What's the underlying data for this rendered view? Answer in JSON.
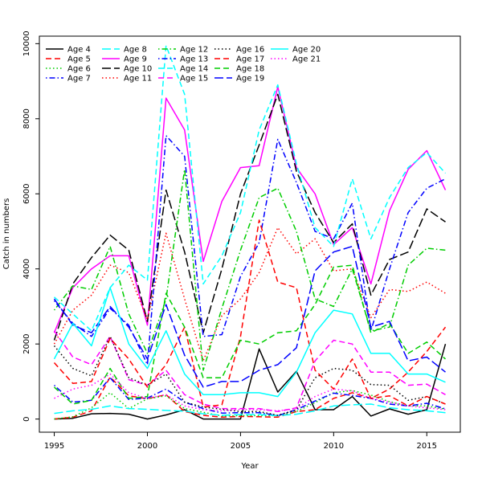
{
  "chart_data": {
    "type": "line",
    "xlabel": "Year",
    "ylabel": "Catch in numbers",
    "xlim": [
      1994.2,
      2016.8
    ],
    "ylim": [
      -350,
      10200
    ],
    "x_ticks": [
      1995,
      2000,
      2005,
      2010,
      2015
    ],
    "y_ticks": [
      0,
      2000,
      4000,
      6000,
      8000,
      10000
    ],
    "x": [
      1995,
      1996,
      1997,
      1998,
      1999,
      2000,
      2001,
      2002,
      2003,
      2004,
      2005,
      2006,
      2007,
      2008,
      2009,
      2010,
      2011,
      2012,
      2013,
      2014,
      2015,
      2016
    ],
    "legend_position": "top-left",
    "series": [
      {
        "name": "Age 4",
        "color": "#000000",
        "dash": "solid",
        "values": [
          0,
          20,
          140,
          150,
          130,
          0,
          110,
          250,
          0,
          0,
          0,
          1870,
          720,
          1270,
          250,
          250,
          600,
          80,
          270,
          130,
          250,
          2000
        ]
      },
      {
        "name": "Age 5",
        "color": "#ff0000",
        "dash": "dashed",
        "values": [
          0,
          50,
          220,
          1120,
          620,
          540,
          650,
          200,
          100,
          50,
          70,
          60,
          50,
          200,
          250,
          550,
          700,
          550,
          800,
          1250,
          1800,
          2450
        ]
      },
      {
        "name": "Age 6",
        "color": "#00cd00",
        "dash": "dotted",
        "values": [
          0,
          60,
          300,
          700,
          280,
          540,
          620,
          280,
          180,
          80,
          90,
          90,
          90,
          200,
          440,
          700,
          760,
          640,
          460,
          350,
          350,
          260
        ]
      },
      {
        "name": "Age 7",
        "color": "#0000ff",
        "dash": "dotdash",
        "values": [
          900,
          450,
          500,
          1100,
          520,
          560,
          800,
          450,
          280,
          160,
          170,
          170,
          90,
          250,
          480,
          690,
          630,
          550,
          400,
          350,
          420,
          270
        ]
      },
      {
        "name": "Age 8",
        "color": "#00ffff",
        "dash": "longdash",
        "values": [
          150,
          220,
          260,
          350,
          280,
          260,
          230,
          210,
          140,
          100,
          120,
          120,
          90,
          130,
          220,
          350,
          380,
          400,
          300,
          250,
          220,
          170
        ]
      },
      {
        "name": "Age 9",
        "color": "#ff00ff",
        "dash": "solid",
        "values": [
          2300,
          3500,
          4000,
          4350,
          4350,
          2500,
          8550,
          7700,
          4200,
          5800,
          6700,
          6750,
          8850,
          6700,
          6000,
          4650,
          5100,
          3600,
          5550,
          6650,
          7150,
          6100
        ]
      },
      {
        "name": "Age 10",
        "color": "#000000",
        "dash": "longdash",
        "values": [
          2100,
          3600,
          4300,
          4900,
          4500,
          2600,
          6100,
          4450,
          2300,
          4000,
          6000,
          7300,
          8650,
          6600,
          5500,
          4700,
          5200,
          3300,
          4250,
          4450,
          5600,
          5250
        ]
      },
      {
        "name": "Age 11",
        "color": "#ff0000",
        "dash": "dotted",
        "values": [
          2000,
          2900,
          3300,
          4100,
          3900,
          2650,
          4950,
          3200,
          1550,
          2750,
          3200,
          3900,
          5100,
          4400,
          4800,
          3950,
          4000,
          2700,
          3450,
          3400,
          3650,
          3350
        ]
      },
      {
        "name": "Age 12",
        "color": "#00cd00",
        "dash": "dotdash",
        "values": [
          2900,
          3550,
          3450,
          4600,
          2800,
          1750,
          3200,
          6650,
          1300,
          2950,
          4500,
          5900,
          6150,
          5000,
          3200,
          3000,
          4000,
          2350,
          2450,
          4100,
          4550,
          4500
        ]
      },
      {
        "name": "Age 13",
        "color": "#0000ff",
        "dash": "dotdash",
        "values": [
          3150,
          2550,
          2200,
          2950,
          2500,
          1450,
          7550,
          7000,
          2200,
          2250,
          3800,
          4700,
          7450,
          6300,
          5000,
          4800,
          5750,
          2350,
          4000,
          5500,
          6150,
          6400
        ]
      },
      {
        "name": "Age 14",
        "color": "#00ffff",
        "dash": "dashed",
        "values": [
          3250,
          2800,
          2350,
          3500,
          4100,
          3700,
          9950,
          8650,
          3600,
          4350,
          5500,
          7700,
          8900,
          6800,
          5100,
          4600,
          6400,
          4800,
          5900,
          6700,
          7100,
          6550
        ]
      },
      {
        "name": "Age 15",
        "color": "#ff00ff",
        "dash": "dashed",
        "values": [
          2350,
          1650,
          1450,
          2200,
          1050,
          900,
          1300,
          650,
          400,
          280,
          280,
          280,
          200,
          300,
          1550,
          2100,
          2000,
          1250,
          1250,
          900,
          930,
          650
        ]
      },
      {
        "name": "Age 16",
        "color": "#000000",
        "dash": "dotted",
        "values": [
          1950,
          1350,
          1150,
          2200,
          1100,
          900,
          1200,
          450,
          320,
          260,
          200,
          200,
          100,
          250,
          1100,
          1350,
          1300,
          920,
          900,
          500,
          600,
          400
        ]
      },
      {
        "name": "Age 17",
        "color": "#ff0000",
        "dash": "dashed",
        "values": [
          1500,
          950,
          1000,
          2150,
          1600,
          850,
          1450,
          2450,
          320,
          380,
          2200,
          5300,
          3650,
          3500,
          1300,
          800,
          1600,
          550,
          620,
          350,
          600,
          400
        ]
      },
      {
        "name": "Age 18",
        "color": "#00cd00",
        "dash": "dashed",
        "values": [
          850,
          400,
          500,
          1350,
          550,
          600,
          3350,
          2450,
          1100,
          1100,
          2100,
          2000,
          2300,
          2350,
          3050,
          4050,
          4100,
          2300,
          2550,
          1750,
          2050,
          1600
        ]
      },
      {
        "name": "Age 19",
        "color": "#0000ff",
        "dash": "longdash",
        "values": [
          3200,
          2500,
          2300,
          3000,
          2450,
          1600,
          3050,
          1700,
          850,
          1000,
          1000,
          1300,
          1450,
          1900,
          3950,
          4450,
          4600,
          2450,
          2600,
          1550,
          1650,
          1250
        ]
      },
      {
        "name": "Age 20",
        "color": "#00ffff",
        "dash": "solid",
        "values": [
          1600,
          2550,
          1950,
          3500,
          2000,
          1350,
          2350,
          1200,
          650,
          650,
          700,
          700,
          600,
          1250,
          2300,
          2900,
          2800,
          1750,
          1750,
          1200,
          1200,
          980
        ]
      },
      {
        "name": "Age 21",
        "color": "#ff00ff",
        "dash": "dotted",
        "values": [
          550,
          800,
          900,
          1200,
          700,
          550,
          650,
          350,
          250,
          220,
          260,
          250,
          220,
          280,
          600,
          800,
          750,
          550,
          450,
          350,
          300,
          250
        ]
      }
    ]
  }
}
